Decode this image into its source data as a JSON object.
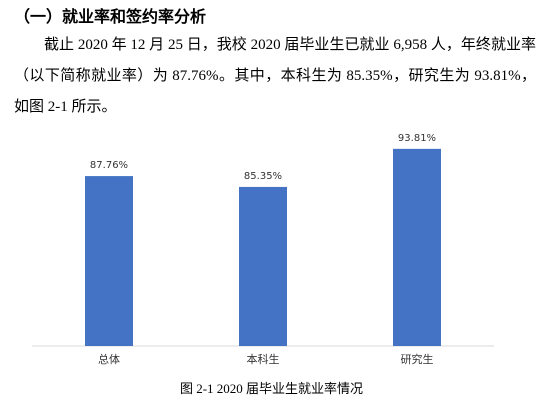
{
  "heading": "（一）就业率和签约率分析",
  "paragraph": "截止 2020 年 12 月 25 日，我校 2020 届毕业生已就业 6,958 人，年终就业率（以下简称就业率）为 87.76%。其中，本科生为 85.35%，研究生为 93.81%，如图 2-1 所示。",
  "chart_data": {
    "type": "bar",
    "categories": [
      "总体",
      "本科生",
      "研究生"
    ],
    "values": [
      87.76,
      85.35,
      93.81
    ],
    "value_labels": [
      "87.76%",
      "85.35%",
      "93.81%"
    ],
    "color": "#4472c4",
    "ylim": [
      50,
      100
    ],
    "caption": "图 2-1 2020 届毕业生就业率情况"
  }
}
